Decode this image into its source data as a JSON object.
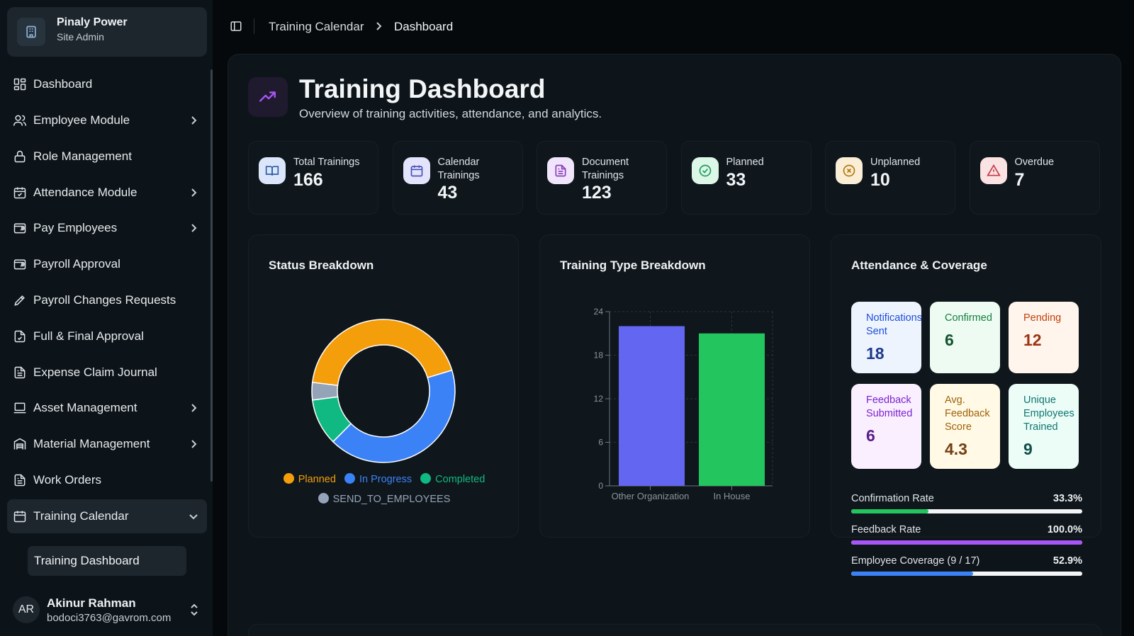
{
  "org": {
    "name": "Pinaly Power",
    "role": "Site Admin"
  },
  "nav": {
    "items": [
      {
        "label": "Dashboard",
        "icon": "layout-grid-icon",
        "has_children": false
      },
      {
        "label": "Employee Module",
        "icon": "users-icon",
        "has_children": true
      },
      {
        "label": "Role Management",
        "icon": "lock-icon",
        "has_children": false
      },
      {
        "label": "Attendance Module",
        "icon": "calendar-check-icon",
        "has_children": true
      },
      {
        "label": "Pay Employees",
        "icon": "wallet-icon",
        "has_children": true
      },
      {
        "label": "Payroll Approval",
        "icon": "wallet-icon",
        "has_children": false
      },
      {
        "label": "Payroll Changes Requests",
        "icon": "pencil-icon",
        "has_children": false
      },
      {
        "label": "Full & Final Approval",
        "icon": "file-check-icon",
        "has_children": false
      },
      {
        "label": "Expense Claim Journal",
        "icon": "file-text-icon",
        "has_children": false
      },
      {
        "label": "Asset Management",
        "icon": "laptop-icon",
        "has_children": true
      },
      {
        "label": "Material Management",
        "icon": "warehouse-icon",
        "has_children": true
      },
      {
        "label": "Work Orders",
        "icon": "file-text-icon",
        "has_children": false
      },
      {
        "label": "Training Calendar",
        "icon": "calendar-icon",
        "has_children": true,
        "expanded": true
      }
    ],
    "sub_item": "Training Dashboard"
  },
  "user": {
    "initials": "AR",
    "name": "Akinur Rahman",
    "email": "bodoci3763@gavrom.com"
  },
  "breadcrumb": {
    "parent": "Training Calendar",
    "current": "Dashboard"
  },
  "page": {
    "title": "Training Dashboard",
    "subtitle": "Overview of training activities, attendance, and analytics."
  },
  "stats": [
    {
      "label": "Total Trainings",
      "value": "166",
      "icon": "book-open-icon",
      "color": "#dbe6fb"
    },
    {
      "label": "Calendar Trainings",
      "value": "43",
      "icon": "calendar-icon",
      "color": "#e3e4fb"
    },
    {
      "label": "Document Trainings",
      "value": "123",
      "icon": "file-text-icon",
      "color": "#f1e5fb"
    },
    {
      "label": "Planned",
      "value": "33",
      "icon": "check-circle-icon",
      "color": "#dcf7e8"
    },
    {
      "label": "Unplanned",
      "value": "10",
      "icon": "x-circle-icon",
      "color": "#fbeed6"
    },
    {
      "label": "Overdue",
      "value": "7",
      "icon": "alert-triangle-icon",
      "color": "#fbe2e3"
    }
  ],
  "status_card": {
    "title": "Status Breakdown",
    "legend": [
      {
        "label": "Planned",
        "color": "#f59e0b"
      },
      {
        "label": "In Progress",
        "color": "#3b82f6"
      },
      {
        "label": "Completed",
        "color": "#10b981"
      },
      {
        "label": "SEND_TO_EMPLOYEES",
        "color": "#94a3b8"
      }
    ]
  },
  "type_card": {
    "title": "Training Type Breakdown"
  },
  "attendance": {
    "title": "Attendance & Coverage",
    "tiles": [
      {
        "label": "Notifications Sent",
        "value": "18",
        "bg": "#eef4fe",
        "fg": "#1d4ed8",
        "vfg": "#1e3a8a"
      },
      {
        "label": "Confirmed",
        "value": "6",
        "bg": "#edfbf3",
        "fg": "#15803d",
        "vfg": "#14532d"
      },
      {
        "label": "Pending",
        "value": "12",
        "bg": "#fff5ec",
        "fg": "#c2410c",
        "vfg": "#9a3412"
      },
      {
        "label": "Feedback Submitted",
        "value": "6",
        "bg": "#f9efff",
        "fg": "#7e22ce",
        "vfg": "#581c87"
      },
      {
        "label": "Avg. Feedback Score",
        "value": "4.3",
        "bg": "#fff9e6",
        "fg": "#a16207",
        "vfg": "#713f12"
      },
      {
        "label": "Unique Employees Trained",
        "value": "9",
        "bg": "#ecfdf8",
        "fg": "#0f766e",
        "vfg": "#134e4a"
      }
    ],
    "rates": [
      {
        "label": "Confirmation Rate",
        "value": "33.3%",
        "fraction": 0.333,
        "color": "#22c55e"
      },
      {
        "label": "Feedback Rate",
        "value": "100.0%",
        "fraction": 1.0,
        "color": "#a855f7"
      },
      {
        "label": "Employee Coverage (9 / 17)",
        "value": "52.9%",
        "fraction": 0.529,
        "color": "#3b82f6"
      }
    ]
  },
  "chart_data": [
    {
      "type": "pie",
      "title": "Status Breakdown",
      "categories": [
        "Planned",
        "In Progress",
        "Completed",
        "SEND_TO_EMPLOYEES"
      ],
      "values": [
        33,
        32,
        8,
        3
      ],
      "colors": [
        "#f59e0b",
        "#3b82f6",
        "#10b981",
        "#94a3b8"
      ],
      "donut": true,
      "legend": "bottom"
    },
    {
      "type": "bar",
      "title": "Training Type Breakdown",
      "categories": [
        "Other Organization",
        "In House"
      ],
      "values": [
        22,
        21
      ],
      "colors": [
        "#6366f1",
        "#22c55e"
      ],
      "yticks": [
        0,
        6,
        12,
        18,
        24
      ],
      "ylim": [
        0,
        24
      ],
      "grid": true
    }
  ]
}
